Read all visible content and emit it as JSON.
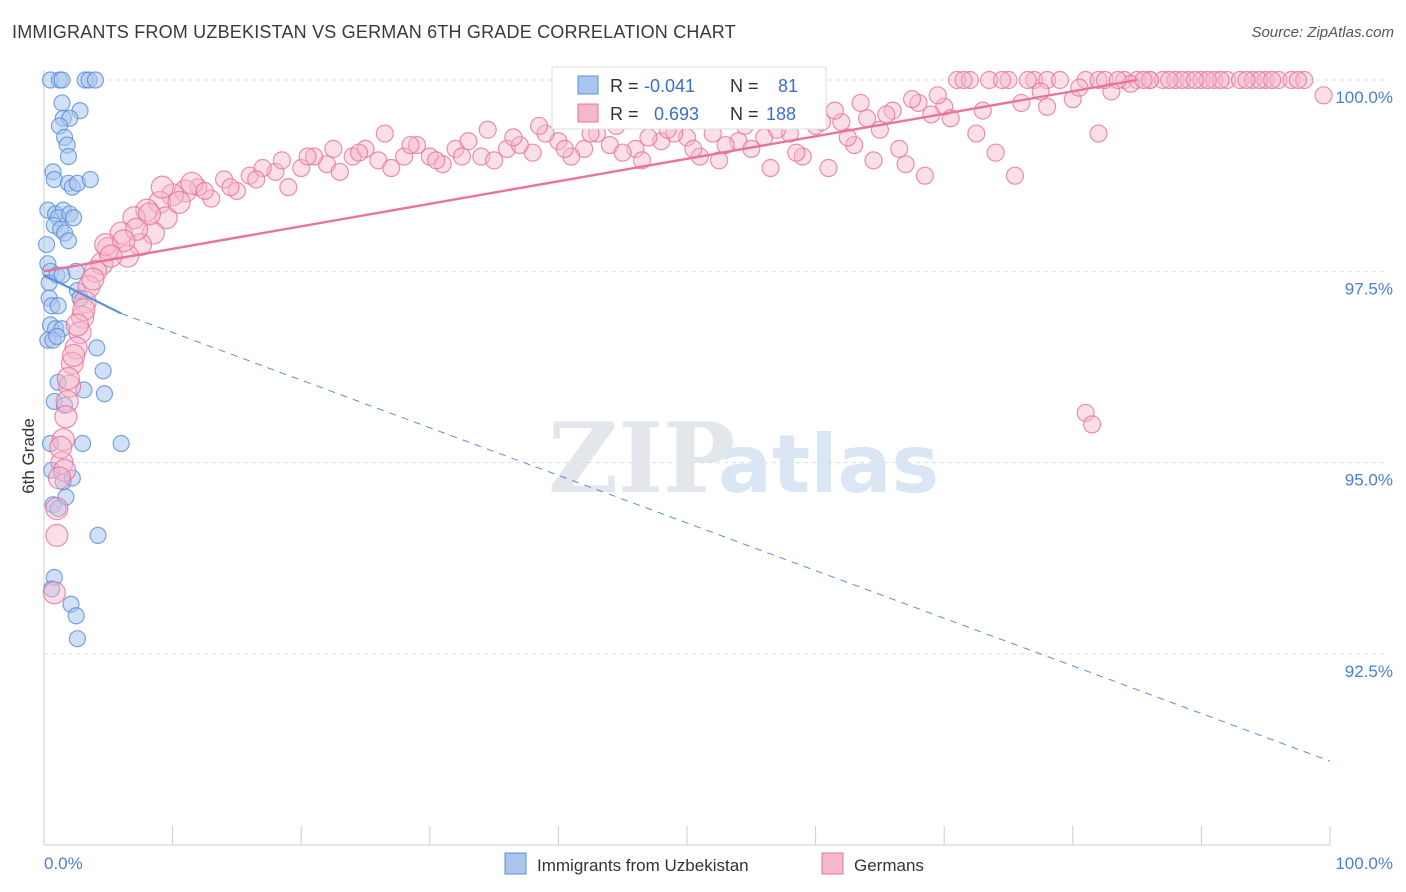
{
  "header": {
    "title": "IMMIGRANTS FROM UZBEKISTAN VS GERMAN 6TH GRADE CORRELATION CHART",
    "source": "Source: ZipAtlas.com"
  },
  "watermark": {
    "zip": "ZIP",
    "atlas": "atlas"
  },
  "colors": {
    "blue": "#5b8fd8",
    "blue_fill": "#a9c6ee",
    "pink": "#e8739b",
    "pink_fill": "#f4b8cc",
    "axis_text": "#4a7fd0",
    "grid": "#dddddd"
  },
  "stats": {
    "r_label": "R =",
    "n_label": "N =",
    "blue": {
      "r": "-0.041",
      "n": "81"
    },
    "pink": {
      "r": "0.693",
      "n": "188"
    }
  },
  "chart_data": {
    "type": "scatter",
    "title": "IMMIGRANTS FROM UZBEKISTAN VS GERMAN 6TH GRADE CORRELATION CHART",
    "ylabel": "6th Grade",
    "xlabel": "",
    "xlim": [
      0,
      100
    ],
    "ylim": [
      90.0,
      100.3
    ],
    "x_ticks": [
      {
        "v": 0,
        "label": "0.0%"
      },
      {
        "v": 100,
        "label": "100.0%"
      }
    ],
    "y_ticks": [
      {
        "v": 100.0,
        "label": "100.0%"
      },
      {
        "v": 97.5,
        "label": "97.5%"
      },
      {
        "v": 95.0,
        "label": "95.0%"
      },
      {
        "v": 92.5,
        "label": "92.5%"
      }
    ],
    "grid": true,
    "legend_position": "bottom",
    "series": [
      {
        "name": "Immigrants from Uzbekistan",
        "color": "#5b8fd8",
        "trend": {
          "x0": 0,
          "y0": 97.45,
          "x1": 6,
          "y1": 96.95,
          "dash_to_x": 100,
          "dash_to_y": 91.1
        },
        "points": [
          [
            0.5,
            100.0
          ],
          [
            1.2,
            100.0
          ],
          [
            1.4,
            100.0
          ],
          [
            3.2,
            100.0
          ],
          [
            3.5,
            100.0
          ],
          [
            4.0,
            100.0
          ],
          [
            1.4,
            99.7
          ],
          [
            2.8,
            99.6
          ],
          [
            1.5,
            99.5
          ],
          [
            2.0,
            99.5
          ],
          [
            1.2,
            99.4
          ],
          [
            1.6,
            99.25
          ],
          [
            1.8,
            99.15
          ],
          [
            1.9,
            99.0
          ],
          [
            0.7,
            98.8
          ],
          [
            0.8,
            98.7
          ],
          [
            1.9,
            98.65
          ],
          [
            2.2,
            98.6
          ],
          [
            2.6,
            98.65
          ],
          [
            3.6,
            98.7
          ],
          [
            0.3,
            98.3
          ],
          [
            0.9,
            98.25
          ],
          [
            1.5,
            98.3
          ],
          [
            1.1,
            98.2
          ],
          [
            2.0,
            98.25
          ],
          [
            2.3,
            98.2
          ],
          [
            0.8,
            98.1
          ],
          [
            1.3,
            98.05
          ],
          [
            1.6,
            98.0
          ],
          [
            1.9,
            97.9
          ],
          [
            0.2,
            97.85
          ],
          [
            0.3,
            97.6
          ],
          [
            0.5,
            97.5
          ],
          [
            1.0,
            97.45
          ],
          [
            1.4,
            97.45
          ],
          [
            2.5,
            97.5
          ],
          [
            0.4,
            97.35
          ],
          [
            2.6,
            97.25
          ],
          [
            0.4,
            97.15
          ],
          [
            0.6,
            97.05
          ],
          [
            1.1,
            97.05
          ],
          [
            2.8,
            97.15
          ],
          [
            0.5,
            96.8
          ],
          [
            0.9,
            96.75
          ],
          [
            1.4,
            96.75
          ],
          [
            0.3,
            96.6
          ],
          [
            0.7,
            96.6
          ],
          [
            1.0,
            96.65
          ],
          [
            4.1,
            96.5
          ],
          [
            4.6,
            96.2
          ],
          [
            1.1,
            96.05
          ],
          [
            3.1,
            95.95
          ],
          [
            4.7,
            95.9
          ],
          [
            0.8,
            95.8
          ],
          [
            1.6,
            95.75
          ],
          [
            0.5,
            95.25
          ],
          [
            3.0,
            95.25
          ],
          [
            6.0,
            95.25
          ],
          [
            0.6,
            94.9
          ],
          [
            1.5,
            94.75
          ],
          [
            2.2,
            94.8
          ],
          [
            1.7,
            94.55
          ],
          [
            0.7,
            94.45
          ],
          [
            1.1,
            94.4
          ],
          [
            4.2,
            94.05
          ],
          [
            0.8,
            93.5
          ],
          [
            0.6,
            93.35
          ],
          [
            2.1,
            93.15
          ],
          [
            2.5,
            93.0
          ],
          [
            2.6,
            92.7
          ]
        ]
      },
      {
        "name": "Germans",
        "color": "#e8739b",
        "trend": {
          "x0": 0,
          "y0": 97.5,
          "x1": 85,
          "y1": 100.0
        },
        "points": [
          [
            71,
            100.0
          ],
          [
            72,
            100.0
          ],
          [
            75,
            100.0
          ],
          [
            77,
            100.0
          ],
          [
            78,
            100.0
          ],
          [
            81,
            100.0
          ],
          [
            82,
            100.0
          ],
          [
            84,
            100.0
          ],
          [
            85,
            100.0
          ],
          [
            86,
            100.0
          ],
          [
            87,
            100.0
          ],
          [
            88,
            100.0
          ],
          [
            89,
            100.0
          ],
          [
            90,
            100.0
          ],
          [
            91,
            100.0
          ],
          [
            92,
            100.0
          ],
          [
            93,
            100.0
          ],
          [
            94,
            100.0
          ],
          [
            95,
            100.0
          ],
          [
            96,
            100.0
          ],
          [
            97,
            100.0
          ],
          [
            99.5,
            99.8
          ],
          [
            83,
            99.85
          ],
          [
            80,
            99.75
          ],
          [
            78,
            99.65
          ],
          [
            76,
            99.7
          ],
          [
            73,
            99.6
          ],
          [
            70,
            99.65
          ],
          [
            68,
            99.7
          ],
          [
            66,
            99.6
          ],
          [
            64,
            99.5
          ],
          [
            62,
            99.45
          ],
          [
            60,
            99.4
          ],
          [
            58,
            99.3
          ],
          [
            56,
            99.25
          ],
          [
            54,
            99.2
          ],
          [
            52,
            99.3
          ],
          [
            50,
            99.25
          ],
          [
            48,
            99.2
          ],
          [
            46,
            99.1
          ],
          [
            44,
            99.15
          ],
          [
            42,
            99.1
          ],
          [
            40,
            99.2
          ],
          [
            38,
            99.05
          ],
          [
            36,
            99.1
          ],
          [
            34,
            99.0
          ],
          [
            32,
            99.1
          ],
          [
            30,
            99.0
          ],
          [
            28,
            99.0
          ],
          [
            26,
            98.95
          ],
          [
            24,
            99.0
          ],
          [
            22,
            98.9
          ],
          [
            20,
            98.85
          ],
          [
            18,
            98.8
          ],
          [
            16,
            98.75
          ],
          [
            14,
            98.7
          ],
          [
            12,
            98.6
          ],
          [
            11,
            98.55
          ],
          [
            10,
            98.5
          ],
          [
            9,
            98.4
          ],
          [
            8,
            98.3
          ],
          [
            7,
            98.2
          ],
          [
            6,
            98.0
          ],
          [
            5,
            97.8
          ],
          [
            4.5,
            97.6
          ],
          [
            4,
            97.5
          ],
          [
            3.5,
            97.3
          ],
          [
            3.2,
            97.1
          ],
          [
            3.0,
            96.9
          ],
          [
            2.8,
            96.7
          ],
          [
            2.5,
            96.5
          ],
          [
            2.2,
            96.3
          ],
          [
            2.0,
            96.0
          ],
          [
            1.8,
            95.8
          ],
          [
            1.5,
            95.3
          ],
          [
            1.4,
            95.0
          ],
          [
            1.6,
            94.9
          ],
          [
            1.2,
            94.8
          ],
          [
            1.0,
            94.4
          ],
          [
            1.0,
            94.05
          ],
          [
            0.8,
            93.3
          ],
          [
            81,
            95.65
          ],
          [
            81.5,
            95.5
          ],
          [
            82,
            99.3
          ],
          [
            74,
            99.05
          ],
          [
            75.5,
            98.75
          ],
          [
            67,
            98.9
          ],
          [
            69,
            99.55
          ],
          [
            65,
            99.35
          ],
          [
            63,
            99.15
          ],
          [
            61,
            98.85
          ],
          [
            59,
            99.0
          ],
          [
            57,
            99.35
          ],
          [
            55,
            99.1
          ],
          [
            53,
            99.15
          ],
          [
            51,
            99.0
          ],
          [
            49,
            99.3
          ],
          [
            47,
            99.25
          ],
          [
            45,
            99.05
          ],
          [
            43,
            99.3
          ],
          [
            41,
            99.0
          ],
          [
            39,
            99.3
          ],
          [
            37,
            99.15
          ],
          [
            35,
            98.95
          ],
          [
            33,
            99.2
          ],
          [
            31,
            98.9
          ],
          [
            29,
            99.15
          ],
          [
            27,
            98.85
          ],
          [
            25,
            99.1
          ],
          [
            23,
            98.8
          ],
          [
            21,
            99.0
          ],
          [
            19,
            98.6
          ],
          [
            17,
            98.85
          ],
          [
            15,
            98.55
          ],
          [
            13,
            98.45
          ],
          [
            11.5,
            98.65
          ],
          [
            9.5,
            98.2
          ],
          [
            8.5,
            98.0
          ],
          [
            7.5,
            97.85
          ],
          [
            6.5,
            97.7
          ],
          [
            4.8,
            97.85
          ],
          [
            86,
            100.0
          ],
          [
            88.5,
            100.0
          ],
          [
            91.5,
            100.0
          ],
          [
            94.5,
            100.0
          ],
          [
            79,
            100.0
          ],
          [
            73.5,
            100.0
          ],
          [
            76.5,
            100.0
          ],
          [
            84.5,
            99.95
          ],
          [
            82.5,
            100.0
          ],
          [
            70.5,
            99.5
          ],
          [
            72.5,
            99.3
          ],
          [
            68.5,
            98.75
          ],
          [
            66.5,
            99.1
          ],
          [
            64.5,
            98.95
          ],
          [
            62.5,
            99.25
          ],
          [
            60.5,
            99.45
          ],
          [
            58.5,
            99.05
          ],
          [
            56.5,
            98.85
          ],
          [
            54.5,
            99.4
          ],
          [
            52.5,
            98.95
          ],
          [
            50.5,
            99.1
          ],
          [
            48.5,
            99.35
          ],
          [
            46.5,
            98.95
          ],
          [
            44.5,
            99.4
          ],
          [
            42.5,
            99.3
          ],
          [
            40.5,
            99.1
          ],
          [
            38.5,
            99.4
          ],
          [
            36.5,
            99.25
          ],
          [
            34.5,
            99.35
          ],
          [
            32.5,
            99.0
          ],
          [
            30.5,
            98.95
          ],
          [
            28.5,
            99.15
          ],
          [
            26.5,
            99.3
          ],
          [
            24.5,
            99.05
          ],
          [
            22.5,
            99.1
          ],
          [
            20.5,
            99.0
          ],
          [
            18.5,
            98.95
          ],
          [
            16.5,
            98.7
          ],
          [
            14.5,
            98.6
          ],
          [
            12.5,
            98.55
          ],
          [
            10.5,
            98.4
          ],
          [
            9.2,
            98.6
          ],
          [
            8.2,
            98.25
          ],
          [
            7.2,
            98.05
          ],
          [
            6.2,
            97.9
          ],
          [
            5.2,
            97.7
          ],
          [
            3.8,
            97.4
          ],
          [
            3.1,
            97.0
          ],
          [
            2.6,
            96.8
          ],
          [
            2.3,
            96.4
          ],
          [
            1.9,
            96.1
          ],
          [
            1.7,
            95.6
          ],
          [
            1.3,
            95.2
          ],
          [
            98,
            100.0
          ],
          [
            97.5,
            100.0
          ],
          [
            95.5,
            100.0
          ],
          [
            93.5,
            100.0
          ],
          [
            90.5,
            100.0
          ],
          [
            89.5,
            100.0
          ],
          [
            87.5,
            100.0
          ],
          [
            85.5,
            100.0
          ],
          [
            83.5,
            100.0
          ],
          [
            80.5,
            99.9
          ],
          [
            77.5,
            99.85
          ],
          [
            74.5,
            100.0
          ],
          [
            71.5,
            100.0
          ],
          [
            69.5,
            99.8
          ],
          [
            67.5,
            99.75
          ],
          [
            65.5,
            99.55
          ],
          [
            63.5,
            99.7
          ],
          [
            61.5,
            99.6
          ],
          [
            59.5,
            99.55
          ]
        ]
      }
    ]
  },
  "legend": {
    "items": [
      {
        "label": "Immigrants from Uzbekistan"
      },
      {
        "label": "Germans"
      }
    ]
  }
}
